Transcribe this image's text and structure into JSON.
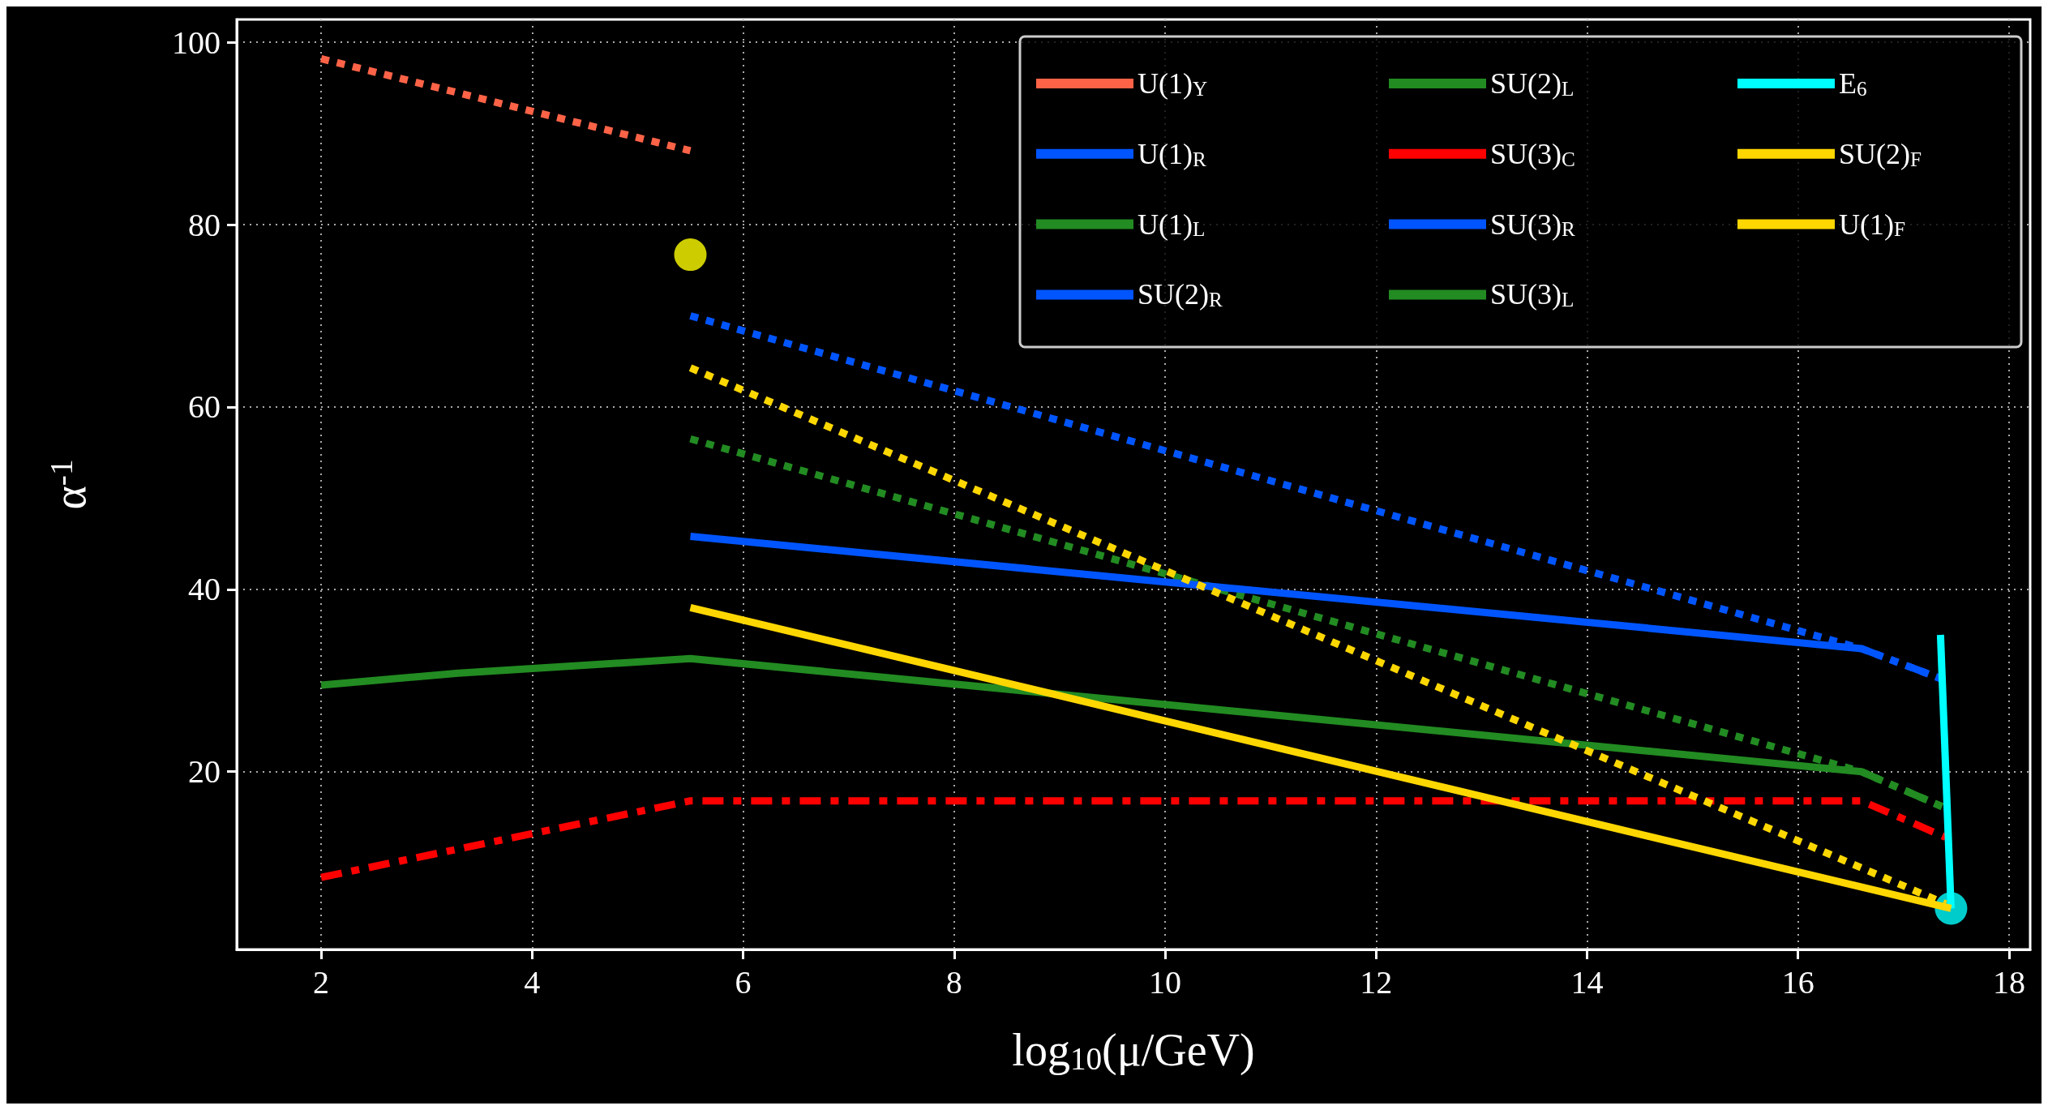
{
  "chart_data": {
    "type": "line",
    "xlabel": "log$_{10}$(μ/GeV)",
    "ylabel": "α$^{-1}$",
    "xlim": [
      1.2,
      18.2
    ],
    "ylim": [
      0.5,
      102.5
    ],
    "xticks": [
      2,
      4,
      6,
      8,
      10,
      12,
      14,
      16,
      18
    ],
    "yticks": [
      20,
      40,
      60,
      80,
      100
    ],
    "grid": true,
    "legend": "top right",
    "series": [
      {
        "name": "U(1)$_{Y}$",
        "color": "#ff6347",
        "line_style": "dotted",
        "x": [
          2,
          5.5
        ],
        "values": [
          98.2,
          88.1
        ]
      },
      {
        "name": "U(1)$_{R}$",
        "color": "#0055ff",
        "line_style": "dotted",
        "x": [
          5.5,
          16.6,
          17.4
        ],
        "values": [
          70,
          33.5,
          30
        ]
      },
      {
        "name": "U(1)$_{L}$",
        "color": "#228b22",
        "line_style": "dotted",
        "x": [
          5.5,
          16.6,
          17.4
        ],
        "values": [
          56.5,
          20,
          16
        ]
      },
      {
        "name": "SU(2)$_{R}$",
        "color": "#0055ff",
        "line_style": "solid",
        "x": [
          5.5,
          16.6
        ],
        "values": [
          45.8,
          33.5
        ]
      },
      {
        "name": "SU(2)$_{L}$",
        "color": "#228b22",
        "line_style": "solid",
        "x": [
          2,
          3.3,
          5.5,
          16.6
        ],
        "values": [
          29.5,
          30.8,
          32.4,
          20
        ]
      },
      {
        "name": "SU(3)$_{C}$",
        "color": "#ff0000",
        "line_style": "dashed",
        "x": [
          2,
          5.5,
          16.6,
          17.4
        ],
        "values": [
          8.4,
          16.8,
          16.8,
          12.8
        ]
      },
      {
        "name": "SU(3)$_{R}$",
        "color": "#0055ff",
        "line_style": "dashed",
        "x": [
          16.6,
          17.4
        ],
        "values": [
          33.5,
          30
        ]
      },
      {
        "name": "SU(3)$_{L}$",
        "color": "#228b22",
        "line_style": "dashed",
        "x": [
          16.6,
          17.4
        ],
        "values": [
          20,
          16
        ]
      },
      {
        "name": "E$_{6}$",
        "color": "#00ffff",
        "line_style": "solid",
        "x": [
          17.35,
          17.45
        ],
        "values": [
          35,
          5
        ]
      },
      {
        "name": "SU(2)$_{F}$",
        "color": "#ffd700",
        "line_style": "solid",
        "x": [
          5.5,
          17.45
        ],
        "values": [
          38,
          5
        ]
      },
      {
        "name": "U(1)$_{F}$",
        "color": "#ffd700",
        "line_style": "dotted",
        "x": [
          5.5,
          17.4
        ],
        "values": [
          64.3,
          5.5
        ]
      },
      {
        "type": "scatter",
        "color": "#ffff00",
        "marker": "circle",
        "x": [
          5.5
        ],
        "values": [
          76.7
        ]
      },
      {
        "type": "scatter",
        "color": "#00ffff",
        "marker": "circle",
        "x": [
          17.45
        ],
        "values": [
          5
        ]
      }
    ]
  }
}
